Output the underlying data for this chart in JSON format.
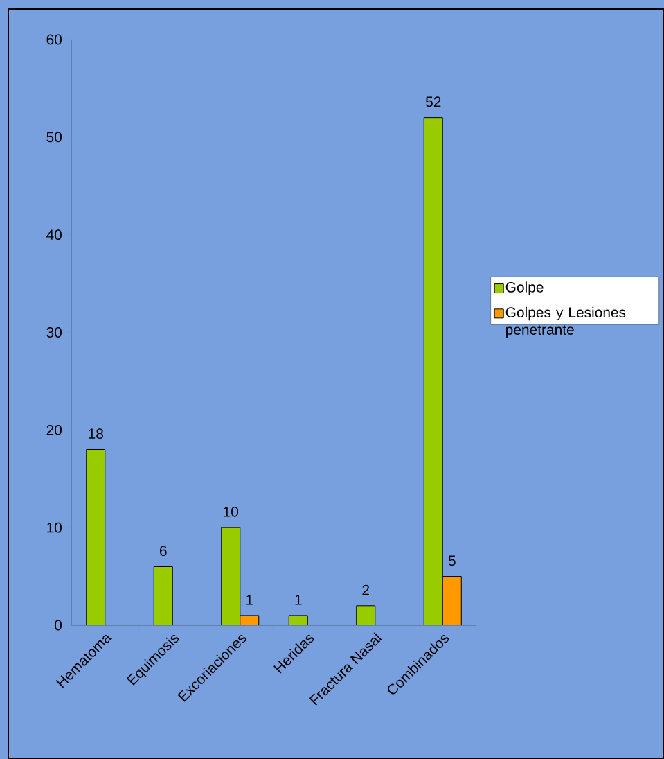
{
  "chart_data": {
    "type": "bar",
    "categories": [
      "Hematoma",
      "Equimosis",
      "Excoriaciones",
      "Heridas",
      "Fractura Nasal",
      "Combinados"
    ],
    "series": [
      {
        "name": "Golpe",
        "color": "#99cc00",
        "values": [
          18,
          6,
          10,
          1,
          2,
          52
        ]
      },
      {
        "name": "Golpes y Lesiones penetrante",
        "color": "#ff9900",
        "values": [
          null,
          null,
          1,
          null,
          null,
          5
        ]
      }
    ],
    "ylim": [
      0,
      60
    ],
    "yticks": [
      0,
      10,
      20,
      30,
      40,
      50,
      60
    ],
    "data_labels": true,
    "legend": "right",
    "grid": false
  }
}
